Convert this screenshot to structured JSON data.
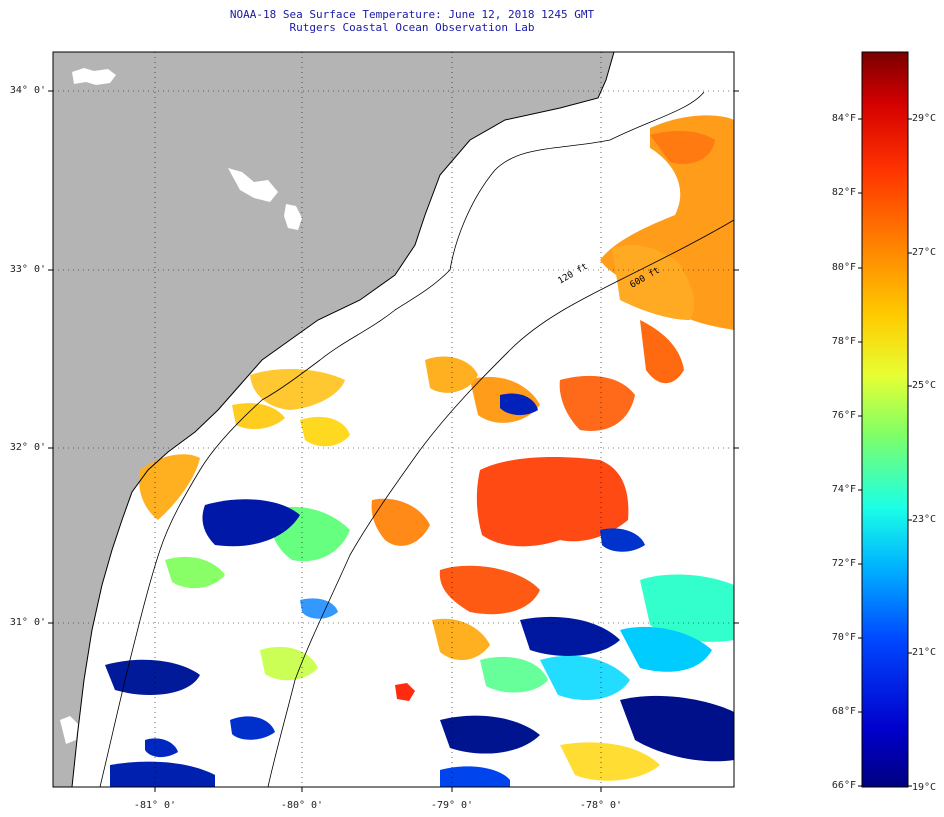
{
  "title": "NOAA-18 Sea Surface Temperature:  June 12, 2018 1245 GMT",
  "subtitle": "Rutgers Coastal Ocean Observation Lab",
  "lat_labels": [
    "34° 0'",
    "33° 0'",
    "32° 0'",
    "31° 0'"
  ],
  "lon_labels": [
    "-81° 0'",
    "-80° 0'",
    "-79° 0'",
    "-78° 0'"
  ],
  "isobath_labels": [
    "120 ft",
    "600 ft"
  ],
  "colorbar": {
    "fahrenheit": [
      "84°F",
      "82°F",
      "80°F",
      "78°F",
      "76°F",
      "74°F",
      "72°F",
      "70°F",
      "68°F",
      "66°F"
    ],
    "celsius": [
      "29°C",
      "27°C",
      "25°C",
      "23°C",
      "21°C",
      "19°C"
    ],
    "colors": [
      "#7a0000",
      "#d40000",
      "#ff3300",
      "#ff8000",
      "#ffcc00",
      "#e6ff33",
      "#80ff66",
      "#1affe6",
      "#00b3ff",
      "#0047ff",
      "#0000cc",
      "#000080"
    ]
  },
  "colors": {
    "land": "#b4b4b4",
    "cloud": "#ffffff",
    "coast": "#000000",
    "title": "#1a1aa6"
  }
}
